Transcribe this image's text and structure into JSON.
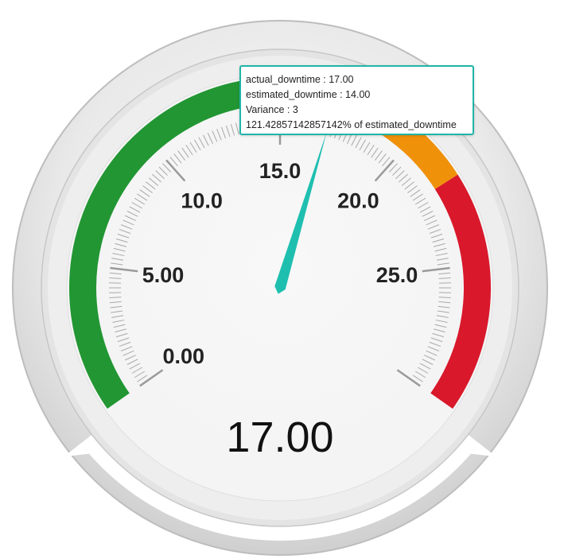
{
  "chart_data": {
    "type": "gauge",
    "value": 17.0,
    "value_label": "17.00",
    "scale": {
      "min": 0,
      "max": 30
    },
    "tick_labels": [
      "0.00",
      "5.00",
      "10.0",
      "15.0",
      "20.0",
      "25.0"
    ],
    "tick_values": [
      0,
      5,
      10,
      15,
      20,
      25
    ],
    "bands": [
      {
        "from": 0,
        "to": 16.8,
        "color": "#229633"
      },
      {
        "from": 16.8,
        "to": 21.9,
        "color": "#f0910a"
      },
      {
        "from": 21.9,
        "to": 30,
        "color": "#d9182b"
      }
    ],
    "needle_color": "#1fbfb0",
    "tooltip": {
      "line1": "actual_downtime : 17.00",
      "line2": "estimated_downtime : 14.00",
      "line3": "Variance : 3",
      "line4": "121.42857142857142% of estimated_downtime"
    }
  }
}
